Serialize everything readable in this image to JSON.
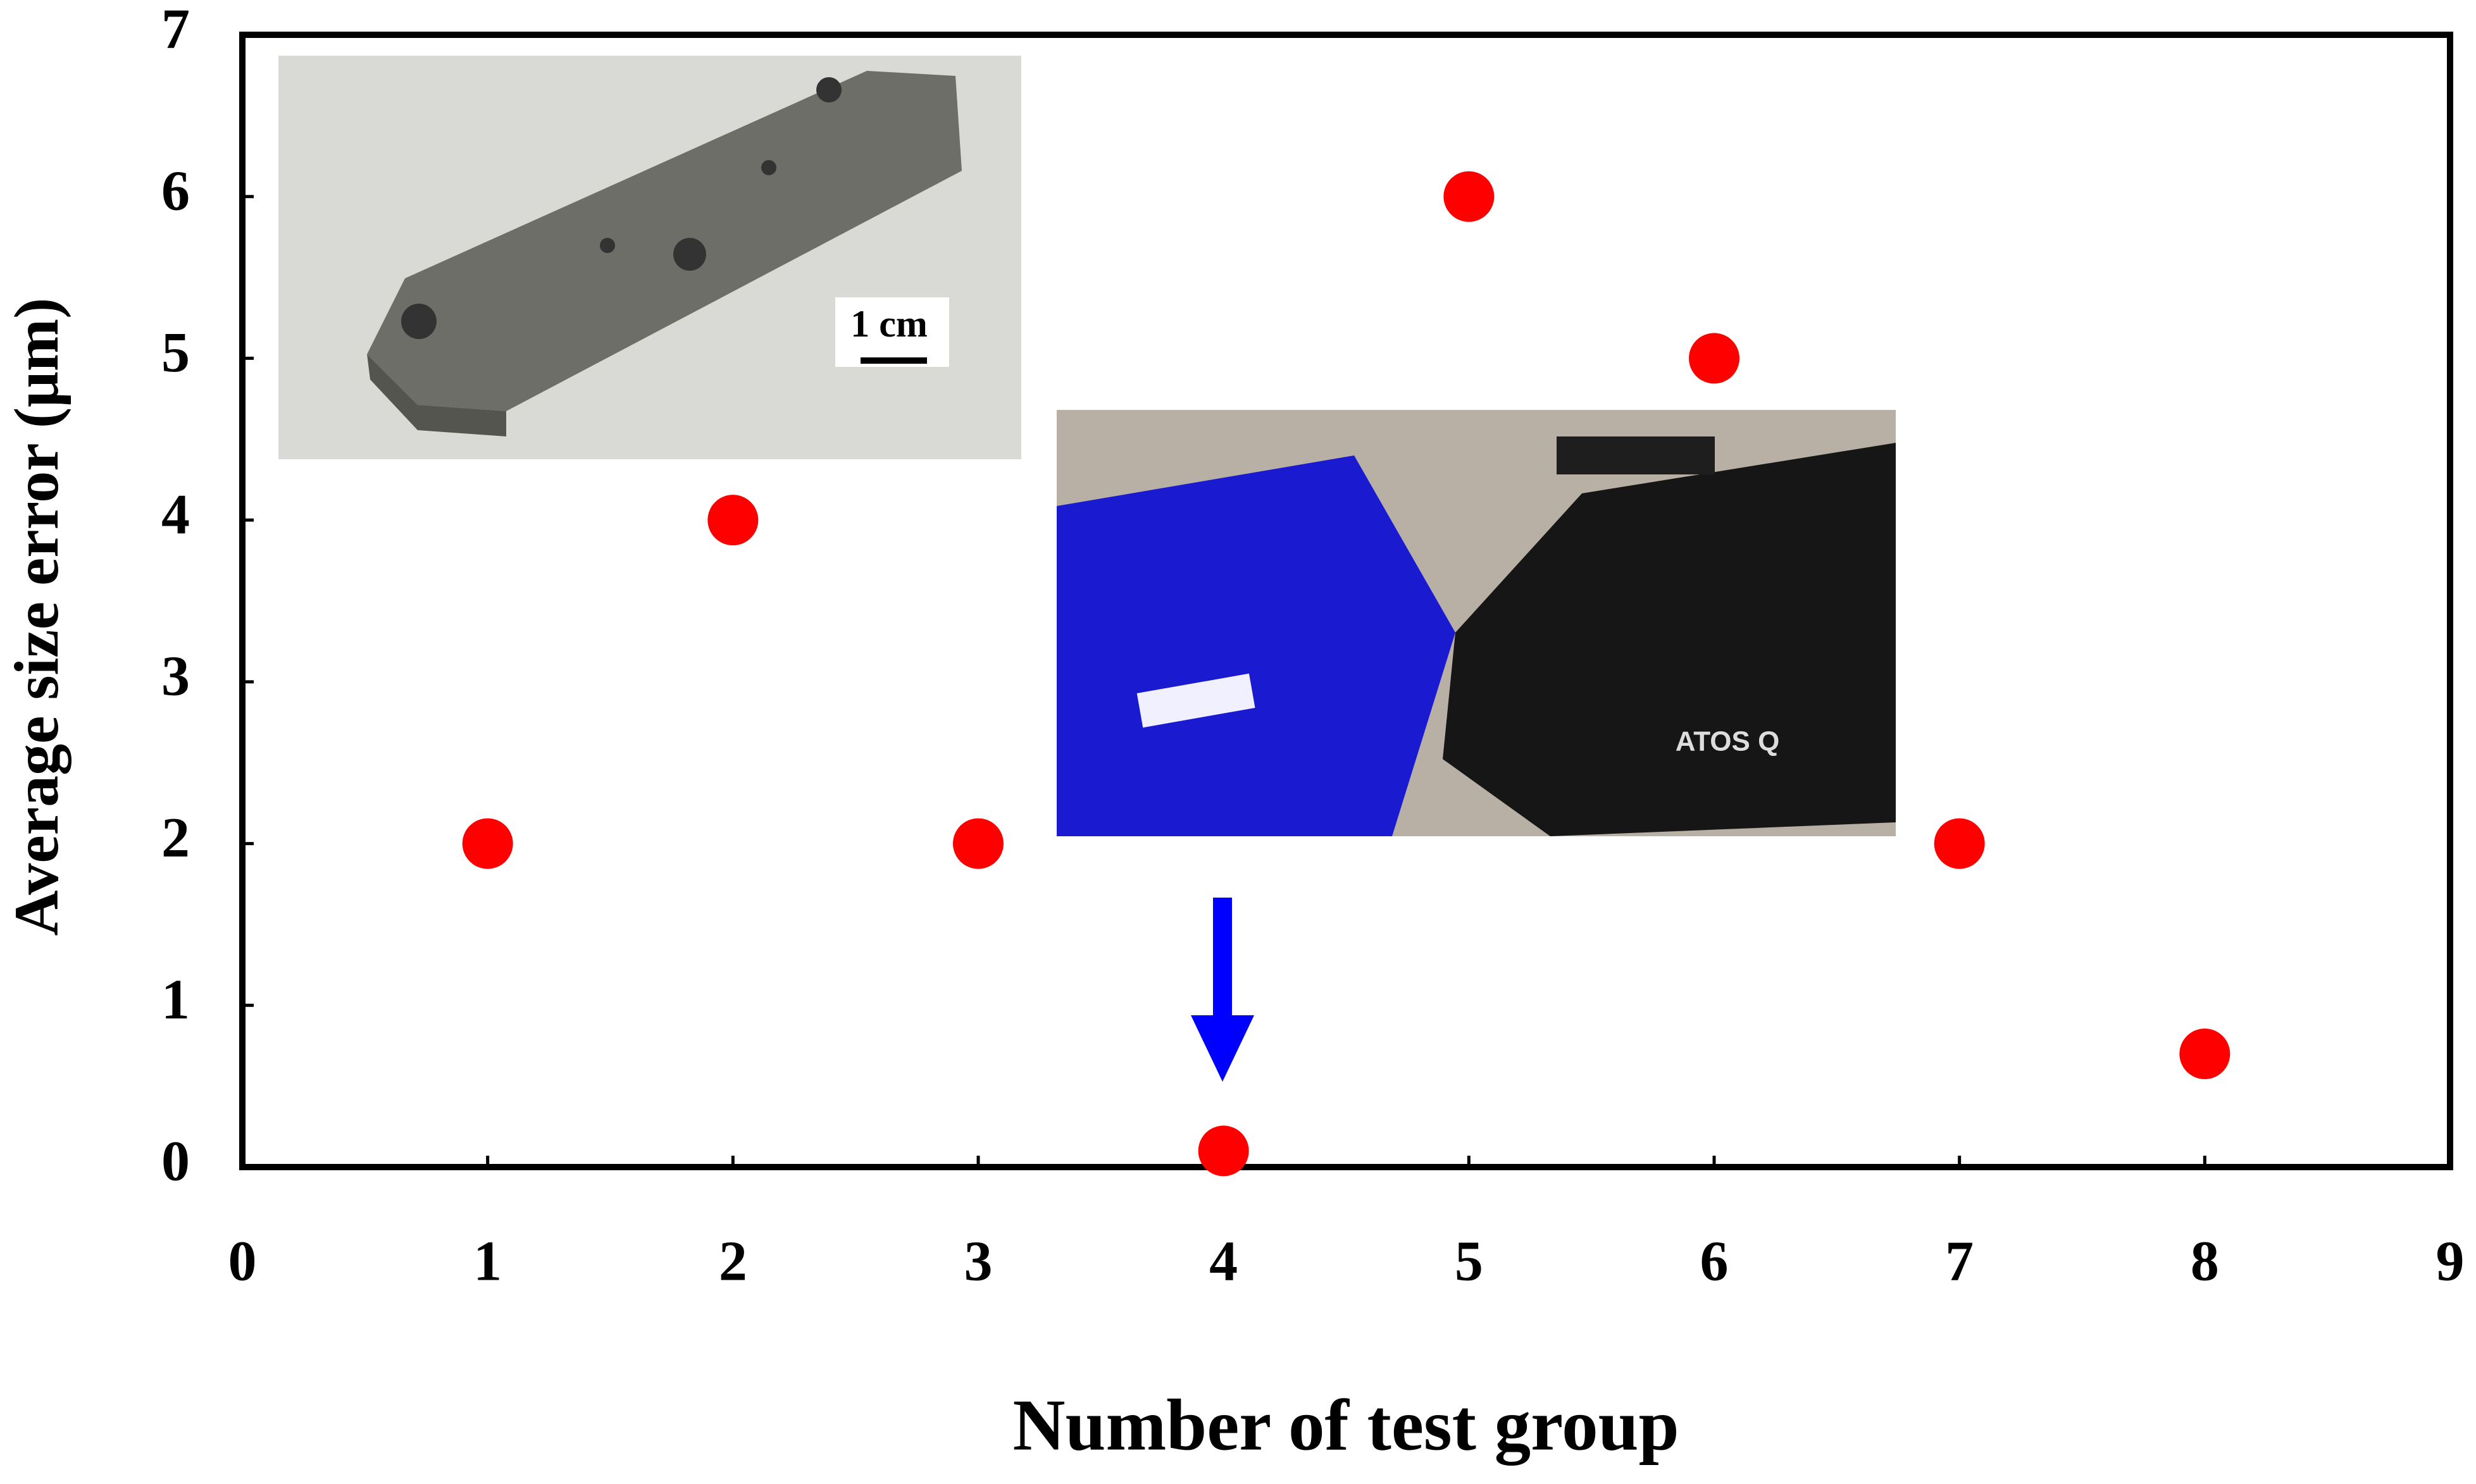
{
  "chart_data": {
    "type": "scatter",
    "x_label": "Number of test group",
    "y_label": "Average size error (μm)",
    "x": [
      1,
      2,
      3,
      4,
      5,
      6,
      7,
      8
    ],
    "values": [
      2,
      4,
      2,
      0.1,
      6,
      5,
      2,
      0.7
    ],
    "color": "#ff0000",
    "xlim": [
      0,
      9
    ],
    "xticks": [
      0,
      1,
      2,
      3,
      4,
      5,
      6,
      7,
      8,
      9
    ],
    "ylim": [
      0,
      7
    ],
    "yticks": [
      0,
      1,
      2,
      3,
      4,
      5,
      6,
      7
    ],
    "grid": false,
    "annotations": [
      "1 cm",
      "ATOS Q"
    ]
  }
}
